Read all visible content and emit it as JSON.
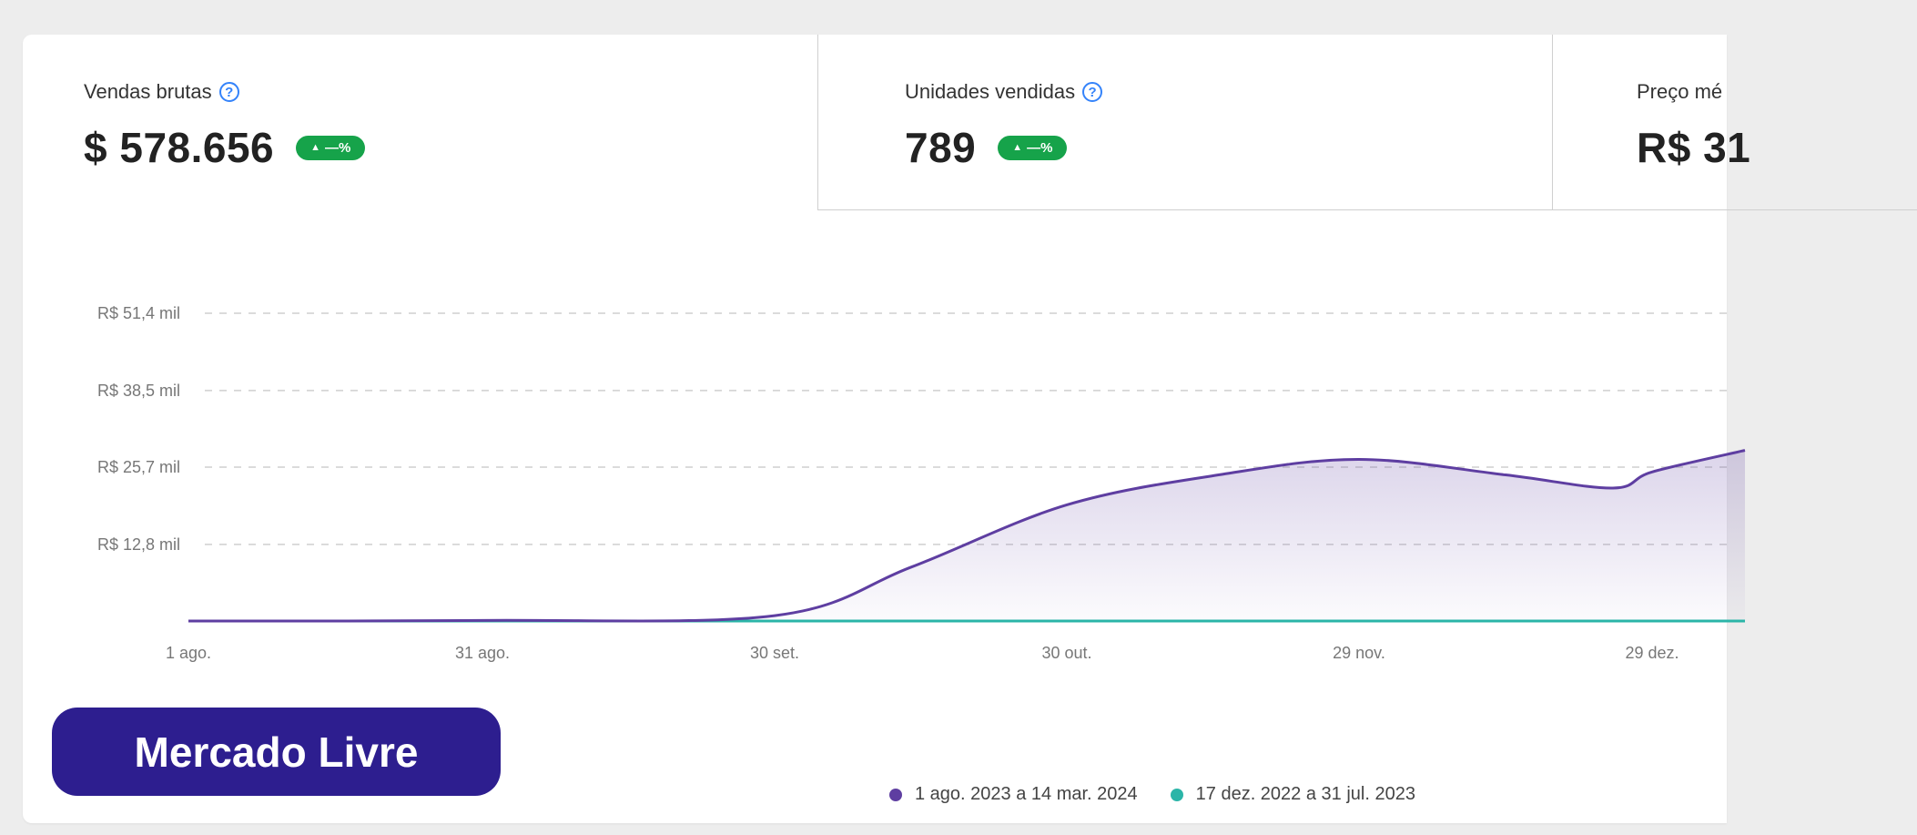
{
  "kpis": [
    {
      "label": "Vendas brutas",
      "value": "$ 578.656",
      "badge": "—%"
    },
    {
      "label": "Unidades vendidas",
      "value": "789",
      "badge": "—%"
    },
    {
      "label": "Preço mé",
      "value": "R$ 31",
      "badge": ""
    }
  ],
  "colors": {
    "primary_series": "#5e3ea1",
    "comparison_series": "#2bb5a8",
    "badge": "#16a34a",
    "brand": "#2d1e8f",
    "help_icon": "#3483fa"
  },
  "brand": {
    "label": "Mercado Livre"
  },
  "legend": [
    {
      "label": "1 ago. 2023 a 14 mar. 2024",
      "color": "#5e3ea1"
    },
    {
      "label": "17 dez. 2022 a 31 jul. 2023",
      "color": "#2bb5a8"
    }
  ],
  "chart_data": {
    "type": "area",
    "title": "",
    "xlabel": "",
    "ylabel": "",
    "x_ticks": [
      "1 ago.",
      "31 ago.",
      "30 set.",
      "30 out.",
      "29 nov.",
      "29 dez."
    ],
    "y_ticks": [
      "R$ 12,8 mil",
      "R$ 25,7 mil",
      "R$ 38,5 mil",
      "R$ 51,4 mil"
    ],
    "y_tick_values": [
      12.8,
      25.7,
      38.5,
      51.4
    ],
    "ylim": [
      0,
      51.4
    ],
    "grid": true,
    "legend_position": "bottom",
    "series": [
      {
        "name": "1 ago. 2023 a 14 mar. 2024",
        "color": "#5e3ea1",
        "points": [
          [
            "1 ago.",
            0
          ],
          [
            "31 ago.",
            0.1
          ],
          [
            "30 set.",
            0.9
          ],
          [
            "14 out.",
            9
          ],
          [
            "30 out.",
            19.4
          ],
          [
            "15 nov.",
            24.5
          ],
          [
            "29 nov.",
            27
          ],
          [
            "14 dez.",
            24.4
          ],
          [
            "25 dez.",
            22.2
          ],
          [
            "29 dez.",
            24.9
          ]
        ]
      },
      {
        "name": "17 dez. 2022 a 31 jul. 2023",
        "color": "#2bb5a8",
        "points": [
          [
            "1 ago.",
            0
          ],
          [
            "31 ago.",
            0
          ],
          [
            "30 set.",
            0
          ],
          [
            "30 out.",
            0
          ],
          [
            "29 nov.",
            0
          ],
          [
            "29 dez.",
            0
          ]
        ]
      }
    ]
  }
}
